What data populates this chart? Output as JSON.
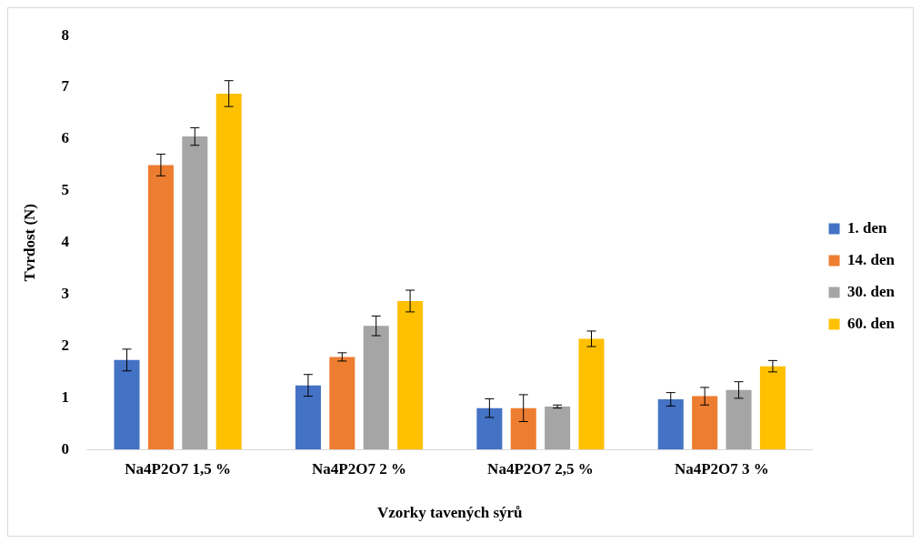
{
  "chart_data": {
    "type": "bar",
    "xlabel": "Vzorky tavených sýrů",
    "ylabel": "Tvrdost (N)",
    "categories": [
      "Na4P2O7 1,5 %",
      "Na4P2O7 2 %",
      "Na4P2O7 2,5 %",
      "Na4P2O7 3 %"
    ],
    "series": [
      {
        "name": "1. den",
        "color": "#4472c4",
        "values": [
          1.73,
          1.24,
          0.8,
          0.97
        ],
        "errors": [
          0.21,
          0.21,
          0.18,
          0.13
        ]
      },
      {
        "name": "14. den",
        "color": "#ed7d31",
        "values": [
          5.5,
          1.79,
          0.8,
          1.03
        ],
        "errors": [
          0.21,
          0.08,
          0.26,
          0.17
        ]
      },
      {
        "name": "30. den",
        "color": "#a5a5a5",
        "values": [
          6.05,
          2.39,
          0.83,
          1.15
        ],
        "errors": [
          0.17,
          0.19,
          0.03,
          0.16
        ]
      },
      {
        "name": "60. den",
        "color": "#ffc000",
        "values": [
          6.88,
          2.87,
          2.14,
          1.61
        ],
        "errors": [
          0.25,
          0.21,
          0.15,
          0.11
        ]
      }
    ],
    "ylim": [
      0,
      8
    ],
    "yticks": [
      0,
      1,
      2,
      3,
      4,
      5,
      6,
      7,
      8
    ],
    "grid": false,
    "legend": "right"
  }
}
